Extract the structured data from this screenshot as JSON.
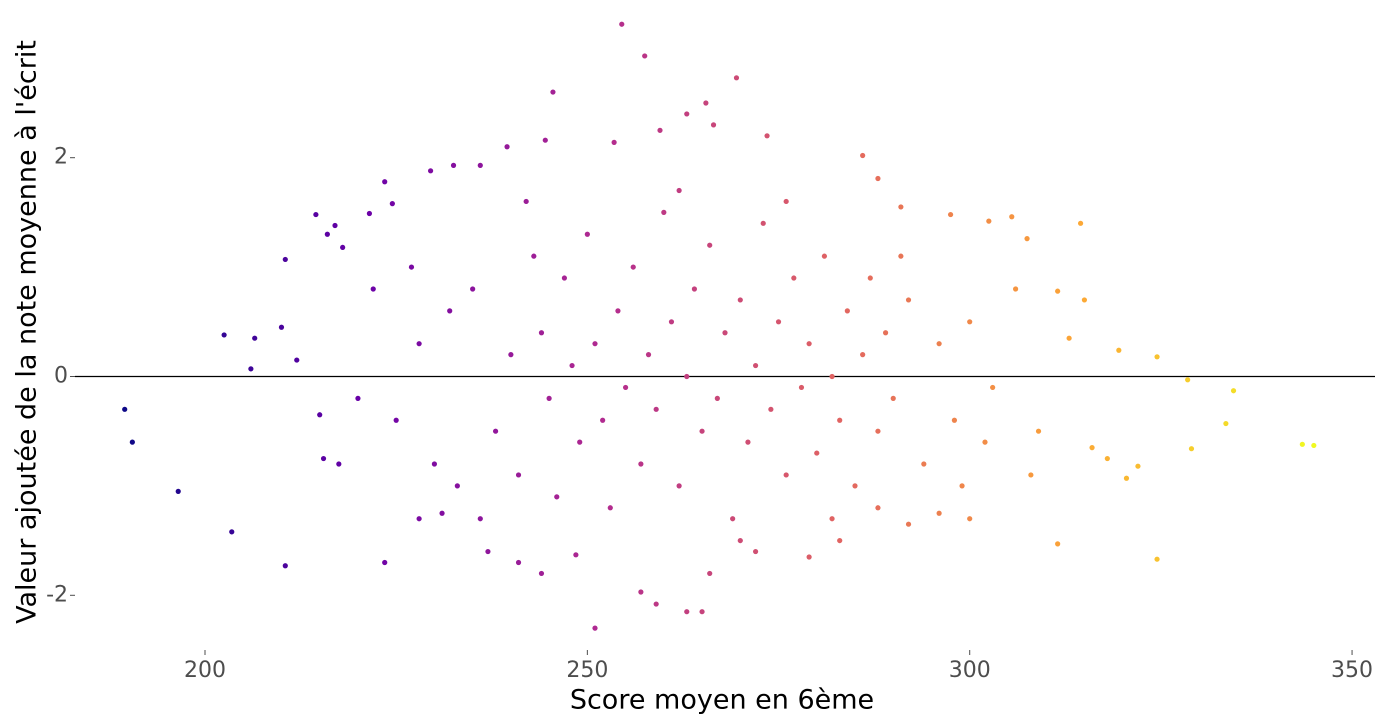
{
  "chart_data": {
    "type": "scatter",
    "x_label": "Score moyen en 6ème",
    "y_label": "Valeur ajoutée de la note moyenne à l'écrit",
    "xlim": [
      183,
      353
    ],
    "ylim": [
      -2.5,
      3.35
    ],
    "xticks": [
      200,
      250,
      300,
      350
    ],
    "yticks": [
      -2,
      0,
      2
    ],
    "grid": false,
    "hline": 0,
    "colorscale": [
      "#0d0887",
      "#6a00a8",
      "#b12a90",
      "#e16462",
      "#fca636",
      "#f0f921"
    ],
    "x": [
      189.5,
      190.5,
      196.5,
      202.5,
      203.5,
      206.5,
      206,
      210,
      210.5,
      210.5,
      212,
      214.5,
      215,
      215.5,
      216,
      217,
      217.5,
      218,
      221.5,
      223.5,
      223.5,
      224.5,
      229.5,
      232.5,
      236,
      239.5,
      245.5,
      244.5,
      253.5,
      254.5,
      257.5,
      259.5,
      263,
      265.5,
      269.5,
      266.5,
      273.5,
      286,
      288,
      291,
      297.5,
      302.5,
      305.5,
      307.5,
      314.5,
      311.5,
      315,
      313,
      319.5,
      324.5,
      328.5,
      334.5,
      329,
      333.5,
      343.5,
      345,
      324.5,
      311.5,
      320.5,
      322,
      318,
      316,
      308,
      302,
      300,
      296,
      292,
      288,
      283,
      279,
      272,
      266,
      265,
      263,
      259,
      257,
      251,
      248.5,
      244,
      241,
      237,
      231,
      228,
      233,
      235,
      238,
      240,
      241,
      243,
      244,
      245,
      246,
      247,
      248,
      249,
      250,
      251,
      252,
      253,
      254,
      255,
      256,
      257,
      258,
      259,
      260,
      261,
      262,
      263,
      264,
      265,
      266,
      267,
      268,
      269,
      270,
      271,
      272,
      273,
      274,
      275,
      276,
      277,
      278,
      279,
      280,
      281,
      282,
      283,
      284,
      285,
      286,
      287,
      288,
      289,
      290,
      292,
      294,
      296,
      298,
      300,
      303,
      306,
      309,
      228,
      225,
      230,
      232,
      227,
      222,
      220,
      236,
      242,
      262,
      270,
      276,
      282,
      291,
      299
    ],
    "y": [
      -0.3,
      -0.6,
      -1.05,
      0.38,
      -1.42,
      0.35,
      0.07,
      0.45,
      1.07,
      -1.73,
      0.15,
      1.48,
      -0.35,
      -0.75,
      1.3,
      1.38,
      -0.8,
      1.18,
      1.49,
      1.78,
      -1.7,
      1.58,
      1.88,
      1.93,
      1.93,
      2.1,
      2.6,
      2.16,
      2.14,
      3.22,
      2.93,
      2.25,
      2.4,
      2.5,
      2.73,
      2.3,
      2.2,
      2.02,
      1.81,
      1.55,
      1.48,
      1.42,
      1.46,
      1.26,
      1.4,
      0.78,
      0.7,
      0.35,
      0.24,
      0.18,
      -0.03,
      -0.13,
      -0.66,
      -0.43,
      -0.62,
      -0.63,
      -1.67,
      -1.53,
      -0.93,
      -0.82,
      -0.75,
      -0.65,
      -0.9,
      -0.6,
      -1.3,
      -1.25,
      -1.35,
      -1.2,
      -1.5,
      -1.65,
      -1.6,
      -1.8,
      -2.15,
      -2.15,
      -2.08,
      -1.97,
      -2.3,
      -1.63,
      -1.8,
      -1.7,
      -1.6,
      -1.25,
      -1.3,
      -1.0,
      0.8,
      -0.5,
      0.2,
      -0.9,
      1.1,
      0.4,
      -0.2,
      -1.1,
      0.9,
      0.1,
      -0.6,
      1.3,
      0.3,
      -0.4,
      -1.2,
      0.6,
      -0.1,
      1.0,
      -0.8,
      0.2,
      -0.3,
      1.5,
      0.5,
      -1.0,
      0.0,
      0.8,
      -0.5,
      1.2,
      -0.2,
      0.4,
      -1.3,
      0.7,
      -0.6,
      0.1,
      1.4,
      -0.3,
      0.5,
      -0.9,
      0.9,
      -0.1,
      0.3,
      -0.7,
      1.1,
      0.0,
      -0.4,
      0.6,
      -1.0,
      0.2,
      0.9,
      -0.5,
      0.4,
      -0.2,
      0.7,
      -0.8,
      0.3,
      -0.4,
      0.5,
      -0.1,
      0.8,
      -0.5,
      0.3,
      -0.4,
      -0.8,
      0.6,
      1.0,
      0.8,
      -0.2,
      -1.3,
      1.6,
      1.7,
      -1.5,
      1.6,
      -1.3,
      1.1,
      -1.0
    ]
  }
}
